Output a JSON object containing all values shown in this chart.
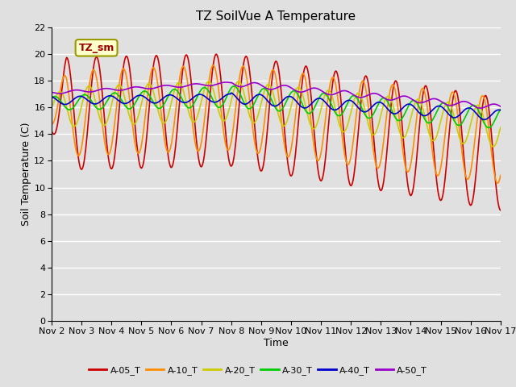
{
  "title": "TZ SoilVue A Temperature",
  "xlabel": "Time",
  "ylabel": "Soil Temperature (C)",
  "annotation": "TZ_sm",
  "ylim": [
    0,
    22
  ],
  "yticks": [
    0,
    2,
    4,
    6,
    8,
    10,
    12,
    14,
    16,
    18,
    20,
    22
  ],
  "series": [
    {
      "label": "A-05_T",
      "color": "#cc0000"
    },
    {
      "label": "A-10_T",
      "color": "#ff8c00"
    },
    {
      "label": "A-20_T",
      "color": "#cccc00"
    },
    {
      "label": "A-30_T",
      "color": "#00cc00"
    },
    {
      "label": "A-40_T",
      "color": "#0000cc"
    },
    {
      "label": "A-50_T",
      "color": "#9900cc"
    }
  ],
  "x_tick_labels": [
    "Nov 2",
    "Nov 3",
    "Nov 4",
    "Nov 5",
    "Nov 6",
    "Nov 7",
    "Nov 8",
    "Nov 9",
    "Nov 10",
    "Nov 11",
    "Nov 12",
    "Nov 13",
    "Nov 14",
    "Nov 15",
    "Nov 16",
    "Nov 17"
  ],
  "background_color": "#e0e0e0",
  "plot_bg_color": "#e0e0e0",
  "grid_color": "#ffffff",
  "title_fontsize": 11,
  "axis_label_fontsize": 9,
  "tick_fontsize": 8,
  "linewidth": 1.2
}
